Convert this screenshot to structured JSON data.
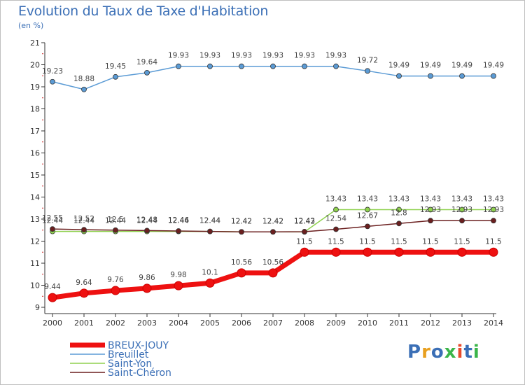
{
  "header": {
    "title": "Evolution du Taux de Taxe d'Habitation",
    "unit": "(en %)"
  },
  "logo": {
    "text": "Proxiti",
    "colors": [
      "#3b6fb6",
      "#e8a020",
      "#3b6fb6",
      "#3bb54a",
      "#e84b2c",
      "#3b6fb6",
      "#3bb54a"
    ]
  },
  "chart_data": {
    "type": "line",
    "title": "Evolution du Taux de Taxe d'Habitation",
    "ylabel": "(en %)",
    "xlabel": "",
    "ylim": [
      9,
      21
    ],
    "yticks": [
      9,
      10,
      11,
      12,
      13,
      14,
      15,
      16,
      17,
      18,
      19,
      20,
      21
    ],
    "grid": false,
    "legend_position": "bottom-left",
    "x": [
      2000,
      2001,
      2002,
      2003,
      2004,
      2005,
      2006,
      2007,
      2008,
      2009,
      2010,
      2011,
      2012,
      2013,
      2014
    ],
    "series": [
      {
        "name": "BREUX-JOUY",
        "color": "#ee1111",
        "values": [
          9.44,
          9.64,
          9.76,
          9.86,
          9.98,
          10.1,
          10.56,
          10.56,
          11.5,
          11.5,
          11.5,
          11.5,
          11.5,
          11.5,
          11.5
        ]
      },
      {
        "name": "Breuillet",
        "color": "#5b9bd5",
        "values": [
          19.23,
          18.88,
          19.45,
          19.64,
          19.93,
          19.93,
          19.93,
          19.93,
          19.93,
          19.93,
          19.72,
          19.49,
          19.49,
          19.49,
          19.49
        ]
      },
      {
        "name": "Saint-Yon",
        "color": "#8fd14f",
        "values": [
          12.44,
          12.44,
          12.44,
          12.44,
          12.44,
          12.44,
          12.42,
          12.42,
          12.42,
          13.43,
          13.43,
          13.43,
          13.43,
          13.43,
          13.43
        ]
      },
      {
        "name": "Saint-Chéron",
        "color": "#6b1f1f",
        "values": [
          12.55,
          12.52,
          12.5,
          12.48,
          12.46,
          12.44,
          12.42,
          12.42,
          12.43,
          12.54,
          12.67,
          12.8,
          12.93,
          12.93,
          12.93
        ]
      }
    ]
  }
}
